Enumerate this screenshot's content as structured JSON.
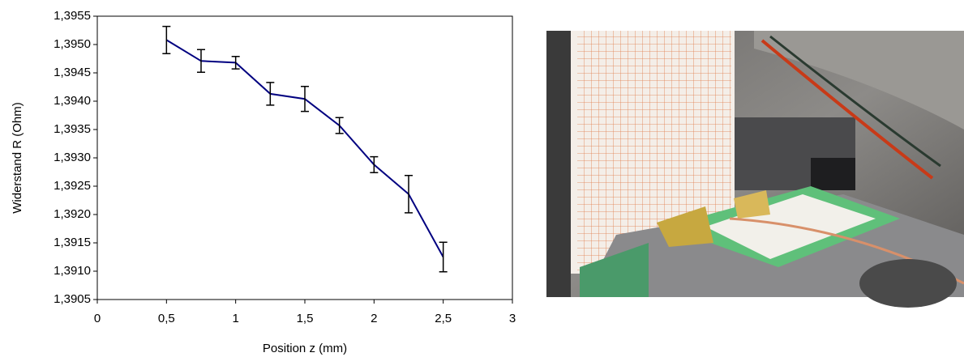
{
  "chart_data": {
    "type": "line",
    "x_label": "Position z (mm)",
    "y_label": "Widerstand R (Ohm)",
    "x": [
      0.5,
      0.75,
      1,
      1.25,
      1.5,
      1.75,
      2,
      2.25,
      2.5
    ],
    "values": [
      1.39508,
      1.39471,
      1.39468,
      1.39413,
      1.39404,
      1.39357,
      1.39288,
      1.39236,
      1.39125
    ],
    "errors": [
      0.00024,
      0.0002,
      0.00011,
      0.0002,
      0.00022,
      0.00014,
      0.00014,
      0.00033,
      0.00026
    ],
    "color": "#000080",
    "xlim": [
      0,
      3
    ],
    "xticks": [
      0,
      {
        "value": 0.5,
        "label": "0,5"
      },
      1,
      {
        "value": 1.5,
        "label": "1,5"
      },
      2,
      {
        "value": 2.5,
        "label": "2,5"
      },
      3
    ],
    "ylim": [
      1.3905,
      1.3955
    ],
    "yticks": [
      {
        "value": 1.3905,
        "label": "1,3905"
      },
      {
        "value": 1.391,
        "label": "1,3910"
      },
      {
        "value": 1.3915,
        "label": "1,3915"
      },
      {
        "value": 1.392,
        "label": "1,3920"
      },
      {
        "value": 1.3925,
        "label": "1,3925"
      },
      {
        "value": 1.393,
        "label": "1,3930"
      },
      {
        "value": 1.3935,
        "label": "1,3935"
      },
      {
        "value": 1.394,
        "label": "1,3940"
      },
      {
        "value": 1.3945,
        "label": "1,3945"
      },
      {
        "value": 1.395,
        "label": "1,3950"
      },
      {
        "value": 1.3955,
        "label": "1,3955"
      }
    ],
    "grid": false
  }
}
